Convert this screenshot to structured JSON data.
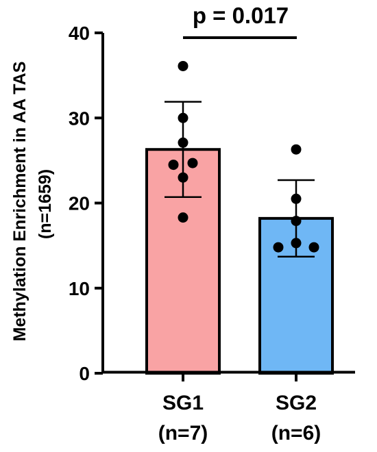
{
  "chart_data": {
    "type": "bar",
    "categories": [
      "SG1",
      "SG2"
    ],
    "category_sublabels": [
      "(n=7)",
      "(n=6)"
    ],
    "ylabel_line1": "Methylation Enrichment in AA TAS",
    "ylabel_line2": "(n=1659)",
    "ylim": [
      0,
      40
    ],
    "yticks": [
      0,
      10,
      20,
      30,
      40
    ],
    "ytick_labels": [
      "0",
      "10",
      "20",
      "30",
      "40"
    ],
    "grid": false,
    "legend": "none",
    "bars": [
      {
        "category": "SG1",
        "mean": 26.3,
        "err_low": 20.7,
        "err_high": 31.9,
        "color": "#F9A3A4",
        "points": [
          36.1,
          30.0,
          27.1,
          24.7,
          24.5,
          23.0,
          18.3
        ]
      },
      {
        "category": "SG2",
        "mean": 18.2,
        "err_low": 13.7,
        "err_high": 22.7,
        "color": "#6FB7F5",
        "points": [
          26.3,
          20.5,
          17.9,
          15.3,
          14.8,
          14.8
        ]
      }
    ],
    "annotation": {
      "text": "p = 0.017",
      "between": [
        "SG1",
        "SG2"
      ]
    }
  }
}
